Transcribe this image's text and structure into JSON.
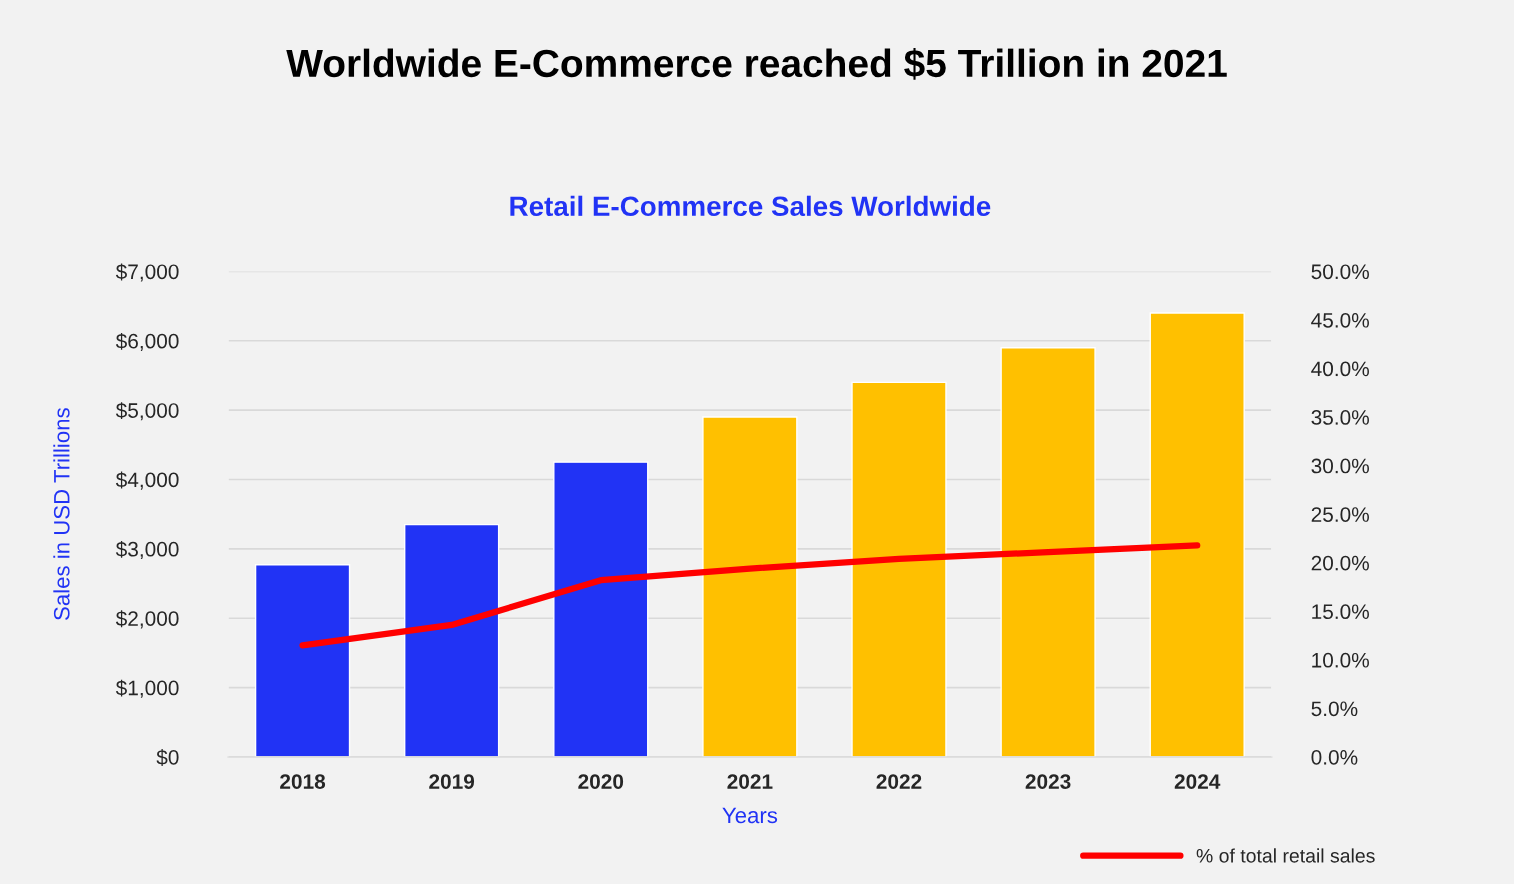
{
  "chart_data": {
    "type": "bar",
    "title": "Worldwide E-Commerce reached $5 Trillion in 2021",
    "subtitle": "Retail E-Commerce Sales Worldwide",
    "xlabel": "Years",
    "ylabel": "Sales in USD Trillions",
    "categories": [
      "2018",
      "2019",
      "2020",
      "2021",
      "2022",
      "2023",
      "2024"
    ],
    "series": [
      {
        "colors": [
          "#2133f5",
          "#2133f5",
          "#2133f5",
          "#ffc000",
          "#ffc000",
          "#ffc000",
          "#ffc000"
        ],
        "values": [
          2770,
          3350,
          4250,
          4900,
          5400,
          5900,
          6400
        ]
      },
      {
        "type": "line",
        "name": "% of total retail sales",
        "color": "#ff0000",
        "axis": "y2",
        "values": [
          11.5,
          13.6,
          18.2,
          19.4,
          20.4,
          21.1,
          21.8
        ]
      }
    ],
    "ylim": [
      0,
      7000
    ],
    "yticks": [
      {
        "value": 0,
        "label": "$0"
      },
      {
        "value": 1000,
        "label": "$1,000"
      },
      {
        "value": 2000,
        "label": "$2,000"
      },
      {
        "value": 3000,
        "label": "$3,000"
      },
      {
        "value": 4000,
        "label": "$4,000"
      },
      {
        "value": 5000,
        "label": "$5,000"
      },
      {
        "value": 6000,
        "label": "$6,000"
      },
      {
        "value": 7000,
        "label": "$7,000"
      }
    ],
    "y2lim": [
      0,
      50
    ],
    "y2ticks": [
      {
        "value": 0,
        "label": "0.0%"
      },
      {
        "value": 5,
        "label": "5.0%"
      },
      {
        "value": 10,
        "label": "10.0%"
      },
      {
        "value": 15,
        "label": "15.0%"
      },
      {
        "value": 20,
        "label": "20.0%"
      },
      {
        "value": 25,
        "label": "25.0%"
      },
      {
        "value": 30,
        "label": "30.0%"
      },
      {
        "value": 35,
        "label": "35.0%"
      },
      {
        "value": 40,
        "label": "40.0%"
      },
      {
        "value": 45,
        "label": "45.0%"
      },
      {
        "value": 50,
        "label": "50.0%"
      }
    ],
    "grid": "y",
    "legend": "bottom right"
  }
}
